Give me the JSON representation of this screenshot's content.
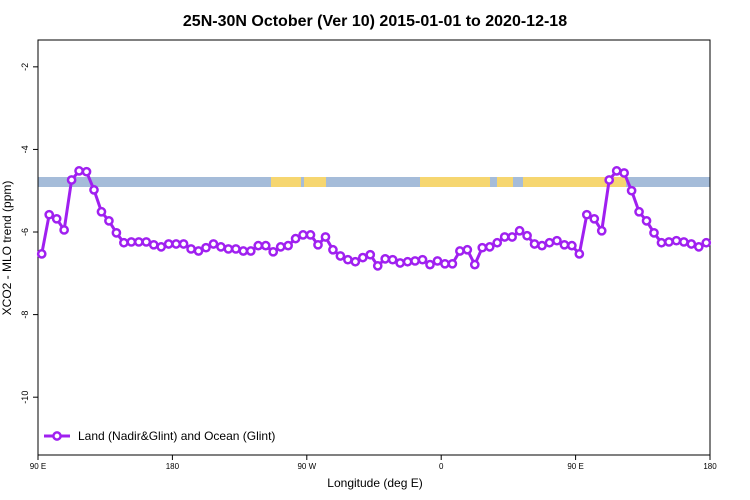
{
  "chart_data": {
    "type": "line",
    "title": "25N-30N October (Ver 10)   2015-01-01 to 2020-12-18",
    "x_label": "Longitude (deg E)",
    "y_label": "XCO2 - MLO trend (ppm)",
    "x": [
      92.5,
      97.5,
      102.5,
      107.5,
      112.5,
      117.5,
      122.5,
      127.5,
      132.5,
      137.5,
      142.5,
      147.5,
      152.5,
      157.5,
      162.5,
      167.5,
      172.5,
      177.5,
      182.5,
      187.5,
      192.5,
      197.5,
      202.5,
      207.5,
      212.5,
      217.5,
      222.5,
      227.5,
      232.5,
      237.5,
      242.5,
      247.5,
      252.5,
      257.5,
      262.5,
      267.5,
      272.5,
      277.5,
      282.5,
      287.5,
      292.5,
      297.5,
      302.5,
      307.5,
      312.5,
      317.5,
      322.5,
      327.5,
      332.5,
      337.5,
      342.5,
      347.5,
      352.5,
      357.5,
      362.5,
      367.5,
      372.5,
      377.5,
      382.5,
      387.5,
      392.5,
      397.5,
      402.5,
      407.5,
      412.5,
      417.5,
      422.5,
      427.5,
      432.5,
      437.5,
      442.5,
      447.5,
      452.5,
      457.5,
      462.5,
      467.5,
      472.5,
      477.5,
      482.5,
      487.5,
      492.5,
      497.5,
      502.5,
      507.5,
      512.5,
      517.5,
      522.5,
      527.5,
      532.5,
      537.5
    ],
    "series": [
      {
        "name": "Land (Nadir&Glint) and Ocean (Glint)",
        "color": "#a020f0",
        "values": [
          -6.53,
          -5.58,
          -5.68,
          -5.95,
          -4.74,
          -4.52,
          -4.54,
          -4.98,
          -5.51,
          -5.73,
          -6.02,
          -6.26,
          -6.24,
          -6.24,
          -6.24,
          -6.31,
          -6.36,
          -6.29,
          -6.29,
          -6.29,
          -6.41,
          -6.46,
          -6.38,
          -6.29,
          -6.36,
          -6.41,
          -6.41,
          -6.46,
          -6.46,
          -6.33,
          -6.33,
          -6.48,
          -6.36,
          -6.33,
          -6.16,
          -6.07,
          -6.07,
          -6.31,
          -6.12,
          -6.43,
          -6.58,
          -6.67,
          -6.72,
          -6.62,
          -6.55,
          -6.82,
          -6.65,
          -6.67,
          -6.75,
          -6.72,
          -6.7,
          -6.67,
          -6.79,
          -6.7,
          -6.77,
          -6.77,
          -6.46,
          -6.43,
          -6.79,
          -6.38,
          -6.36,
          -6.26,
          -6.12,
          -6.12,
          -5.97,
          -6.09,
          -6.29,
          -6.33,
          -6.26,
          -6.21,
          -6.31,
          -6.33,
          -6.53,
          -5.58,
          -5.68,
          -5.97,
          -4.74,
          -4.52,
          -4.57,
          -5.0,
          -5.51,
          -5.73,
          -6.02,
          -6.26,
          -6.24,
          -6.21,
          -6.24,
          -6.29,
          -6.36,
          -6.26
        ]
      }
    ],
    "xlim": [
      90,
      540
    ],
    "xticks": [
      {
        "value": 90,
        "label": "90 E"
      },
      180,
      {
        "value": 270,
        "label": "90 W"
      },
      {
        "value": 360,
        "label": "0"
      },
      {
        "value": 450,
        "label": "90 E"
      },
      {
        "value": 540,
        "label": "180"
      }
    ],
    "ylim": [
      -11.4,
      -1.35
    ],
    "yticks": [
      -10,
      -8,
      -6,
      -4,
      -2
    ],
    "legend": "bottom-left"
  }
}
